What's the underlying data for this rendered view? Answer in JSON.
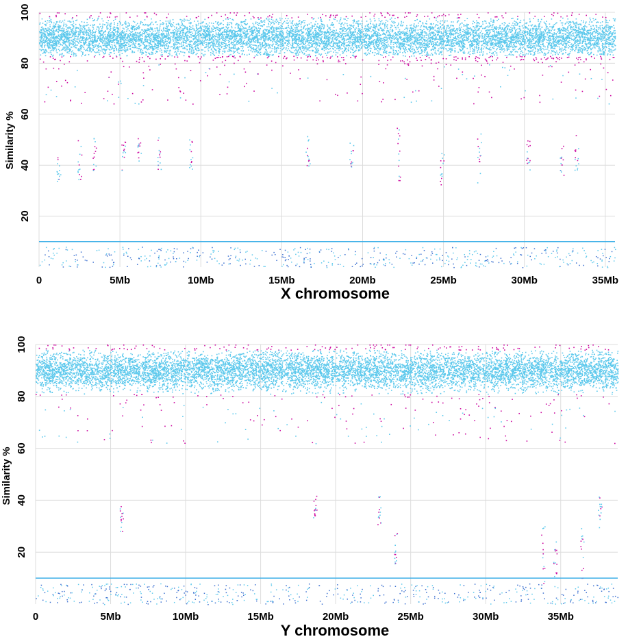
{
  "colors": {
    "main_dots": "#5bc8ec",
    "edge_dots": "#cc0aa0",
    "low_dots": "#3a6fd0",
    "threshold_line": "#3fb0e8",
    "gridline": "#dcdcdc"
  },
  "chart_data": [
    {
      "type": "scatter",
      "title": "",
      "xlabel": "X chromosome",
      "ylabel": "Similarity %",
      "xlim": [
        0,
        35.6
      ],
      "ylim": [
        0,
        100
      ],
      "x_unit": "Mb",
      "x_ticks": [
        0,
        5,
        10,
        15,
        20,
        25,
        30,
        35
      ],
      "x_tick_labels": [
        "0",
        "5Mb",
        "10Mb",
        "15Mb",
        "20Mb",
        "25Mb",
        "30Mb",
        "35Mb"
      ],
      "y_ticks": [
        20,
        40,
        60,
        80,
        100
      ],
      "y_tick_labels": [
        "20",
        "40",
        "60",
        "80",
        "100"
      ],
      "grid": true,
      "threshold": 10,
      "series": [
        {
          "values_summary": {
            "dense_band_min": 82,
            "dense_band_max": 100,
            "mode": 90
          }
        },
        {
          "clusters": [
            {
              "x": 1.2,
              "y_min": 33,
              "y_max": 44
            },
            {
              "x": 2.5,
              "y_min": 33,
              "y_max": 50
            },
            {
              "x": 3.4,
              "y_min": 38,
              "y_max": 52
            },
            {
              "x": 5.2,
              "y_min": 38,
              "y_max": 50
            },
            {
              "x": 6.2,
              "y_min": 38,
              "y_max": 52
            },
            {
              "x": 7.4,
              "y_min": 38,
              "y_max": 52
            },
            {
              "x": 9.4,
              "y_min": 38,
              "y_max": 52
            },
            {
              "x": 16.6,
              "y_min": 38,
              "y_max": 52
            },
            {
              "x": 19.3,
              "y_min": 38,
              "y_max": 50
            },
            {
              "x": 22.2,
              "y_min": 33,
              "y_max": 55
            },
            {
              "x": 24.9,
              "y_min": 30,
              "y_max": 45
            },
            {
              "x": 27.2,
              "y_min": 30,
              "y_max": 55
            },
            {
              "x": 30.2,
              "y_min": 38,
              "y_max": 50
            },
            {
              "x": 32.3,
              "y_min": 35,
              "y_max": 50
            },
            {
              "x": 33.2,
              "y_min": 38,
              "y_max": 52
            }
          ]
        }
      ]
    },
    {
      "type": "scatter",
      "title": "",
      "xlabel": "Y chromosome",
      "ylabel": "Similarity %",
      "xlim": [
        0,
        38.8
      ],
      "ylim": [
        0,
        100
      ],
      "x_unit": "Mb",
      "x_ticks": [
        0,
        5,
        10,
        15,
        20,
        25,
        30,
        35
      ],
      "x_tick_labels": [
        "0",
        "5Mb",
        "10Mb",
        "15Mb",
        "20Mb",
        "25Mb",
        "30Mb",
        "35Mb"
      ],
      "y_ticks": [
        20,
        40,
        60,
        80,
        100
      ],
      "y_tick_labels": [
        "20",
        "40",
        "60",
        "80",
        "100"
      ],
      "grid": true,
      "threshold": 10,
      "series": [
        {
          "values_summary": {
            "dense_band_min": 80,
            "dense_band_max": 100,
            "mode": 90
          }
        },
        {
          "clusters": [
            {
              "x": 5.7,
              "y_min": 28,
              "y_max": 40
            },
            {
              "x": 18.6,
              "y_min": 33,
              "y_max": 42
            },
            {
              "x": 22.9,
              "y_min": 30,
              "y_max": 42
            },
            {
              "x": 24.0,
              "y_min": 15,
              "y_max": 28
            },
            {
              "x": 33.8,
              "y_min": 8,
              "y_max": 30
            },
            {
              "x": 34.6,
              "y_min": 10,
              "y_max": 25
            },
            {
              "x": 36.4,
              "y_min": 10,
              "y_max": 30
            },
            {
              "x": 37.6,
              "y_min": 28,
              "y_max": 42
            }
          ]
        }
      ]
    }
  ]
}
